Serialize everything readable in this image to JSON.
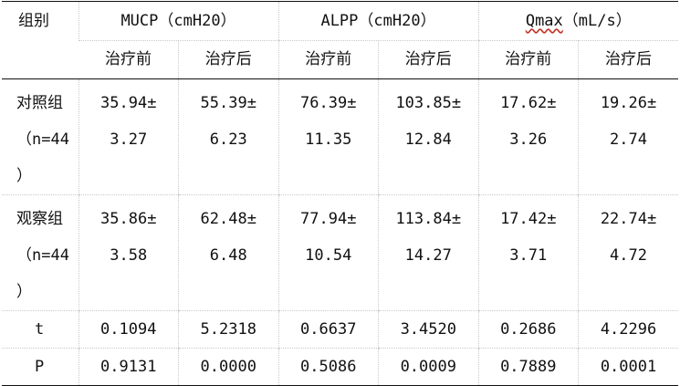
{
  "header": {
    "group_label": "组别",
    "metrics": [
      {
        "name": "MUCP",
        "unit": "cmH20",
        "open": "（",
        "close": "）"
      },
      {
        "name": "ALPP",
        "unit": "cmH20",
        "open": "（",
        "close": "）"
      },
      {
        "name": "Qmax",
        "unit": "mL/s",
        "open": "（",
        "close": "）"
      }
    ],
    "before": "治疗前",
    "after": "治疗后"
  },
  "rows": [
    {
      "group_lines": [
        "对照组",
        "（n=44",
        "）"
      ],
      "values": [
        [
          "35.94±",
          "3.27"
        ],
        [
          "55.39±",
          "6.23"
        ],
        [
          "76.39±",
          "11.35"
        ],
        [
          "103.85±",
          "12.84"
        ],
        [
          "17.62±",
          "3.26"
        ],
        [
          "19.26±",
          "2.74"
        ]
      ]
    },
    {
      "group_lines": [
        "观察组",
        "（n=44",
        "）"
      ],
      "values": [
        [
          "35.86±",
          "3.58"
        ],
        [
          "62.48±",
          "6.48"
        ],
        [
          "77.94±",
          "10.54"
        ],
        [
          "113.84±",
          "14.27"
        ],
        [
          "17.42±",
          "3.71"
        ],
        [
          "22.74±",
          "4.72"
        ]
      ]
    }
  ],
  "stats": [
    {
      "label": "t",
      "values": [
        "0.1094",
        "5.2318",
        "0.6637",
        "3.4520",
        "0.2686",
        "4.2296"
      ]
    },
    {
      "label": "P",
      "values": [
        "0.9131",
        "0.0000",
        "0.5086",
        "0.0009",
        "0.7889",
        "0.0001"
      ]
    }
  ]
}
